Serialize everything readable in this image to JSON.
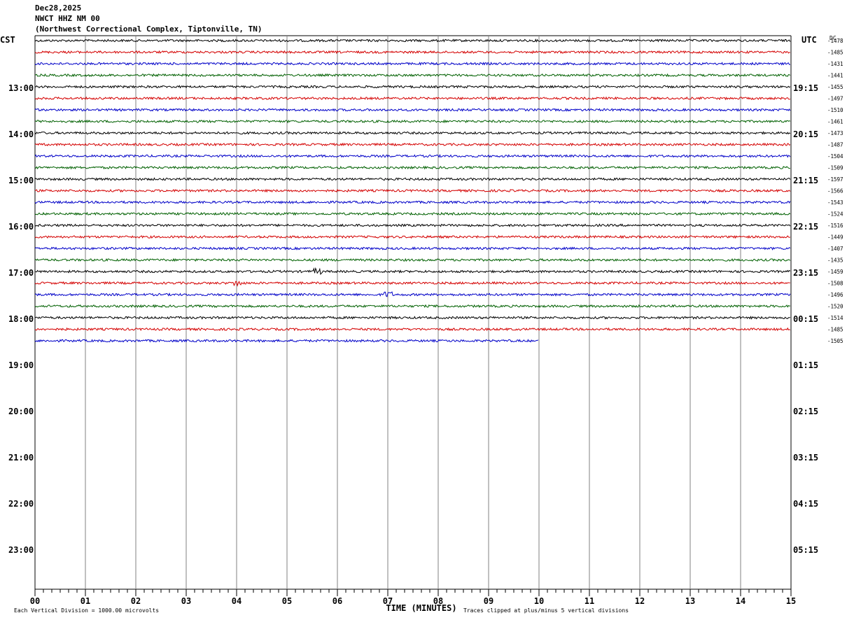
{
  "header": {
    "date": "Dec28,2025",
    "station": "NWCT HHZ NM 00",
    "location": "(Northwest Correctional Complex, Tiptonville, TN)"
  },
  "axes": {
    "left_tz": "CST",
    "right_tz": "UTC",
    "dc_label": "DC",
    "x_title": "TIME (MINUTES)",
    "footer_left": "Each Vertical Division = 1000.00 microvolts",
    "footer_right": "Traces clipped at plus/minus 5 vertical divisions"
  },
  "colors": {
    "trace_cycle": [
      "#000000",
      "#d40000",
      "#0000c8",
      "#006000"
    ],
    "gridline": "#808080"
  },
  "chart_data": {
    "type": "line",
    "title": "NWCT HHZ NM 00",
    "xlabel": "TIME (MINUTES)",
    "xlim": [
      0,
      15
    ],
    "x_ticks": [
      "00",
      "01",
      "02",
      "03",
      "04",
      "05",
      "06",
      "07",
      "08",
      "09",
      "10",
      "11",
      "12",
      "13",
      "14",
      "15"
    ],
    "left_hours": [
      "13:00",
      "14:00",
      "15:00",
      "16:00",
      "17:00",
      "18:00",
      "19:00",
      "20:00",
      "21:00",
      "22:00",
      "23:00"
    ],
    "right_hours": [
      "19:15",
      "20:15",
      "21:15",
      "22:15",
      "23:15",
      "00:15",
      "01:15",
      "02:15",
      "03:15",
      "04:15",
      "05:15"
    ],
    "traces_per_hour": 4,
    "trace_minutes": 15,
    "dc_offsets": [
      "-1478",
      "-1485",
      "-1431",
      "-1441",
      "-1455",
      "-1497",
      "-1510",
      "-1461",
      "-1473",
      "-1487",
      "-1504",
      "-1509",
      "-1597",
      "-1566",
      "-1543",
      "-1524",
      "-1516",
      "-1449",
      "-1407",
      "-1435",
      "-1459",
      "-1508",
      "-1496",
      "-1520",
      "-1514",
      "-1485",
      "-1505"
    ],
    "last_trace_end_minute": 10,
    "events": [
      {
        "trace": 20,
        "minute": 5.6
      },
      {
        "trace": 21,
        "minute": 4.0
      },
      {
        "trace": 22,
        "minute": 7.0
      }
    ]
  }
}
